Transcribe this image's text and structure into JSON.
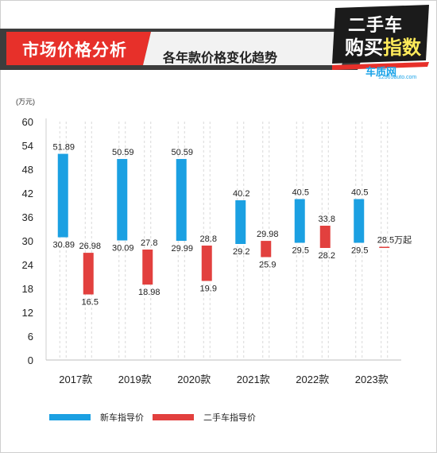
{
  "header": {
    "section_title": "市场价格分析",
    "sub_title": "各年款价格变化趋势",
    "logo_line1": "二手车",
    "logo_line2a": "购买",
    "logo_line2b": "指数",
    "logo_brand": "车质网",
    "logo_site": "12365auto.com"
  },
  "colors": {
    "new_car": "#1ba0e2",
    "used_car": "#e2403e",
    "title_red": "#e7302a",
    "dark_band": "#3d3d3d"
  },
  "chart_data": {
    "type": "bar",
    "chart_kind": "floating-range-bar",
    "unit_label": "(万元)",
    "y_ticks": [
      "60",
      "54",
      "48",
      "42",
      "36",
      "30",
      "24",
      "18",
      "12",
      "6",
      "0"
    ],
    "ylim": [
      0,
      60
    ],
    "grid": "vertical-dashed",
    "legend_position": "bottom",
    "categories": [
      "2017款",
      "2019款",
      "2020款",
      "2021款",
      "2022款",
      "2023款"
    ],
    "series": [
      {
        "name": "新车指导价",
        "color": "#1ba0e2",
        "high": [
          51.89,
          50.59,
          50.59,
          40.2,
          40.5,
          40.5
        ],
        "low": [
          30.89,
          30.09,
          29.99,
          29.2,
          29.5,
          29.5
        ],
        "high_labels": [
          "51.89",
          "50.59",
          "50.59",
          "40.2",
          "40.5",
          "40.5"
        ],
        "low_labels": [
          "30.89",
          "30.09",
          "29.99",
          "29.2",
          "29.5",
          "29.5"
        ]
      },
      {
        "name": "二手车指导价",
        "color": "#e2403e",
        "high": [
          26.98,
          27.8,
          28.8,
          29.98,
          33.8,
          28.5
        ],
        "low": [
          16.5,
          18.98,
          19.9,
          25.9,
          28.2,
          28.5
        ],
        "high_labels": [
          "26.98",
          "27.8",
          "28.8",
          "29.98",
          "33.8",
          "28.5万起"
        ],
        "low_labels": [
          "16.5",
          "18.98",
          "19.9",
          "25.9",
          "28.2",
          ""
        ]
      }
    ]
  }
}
